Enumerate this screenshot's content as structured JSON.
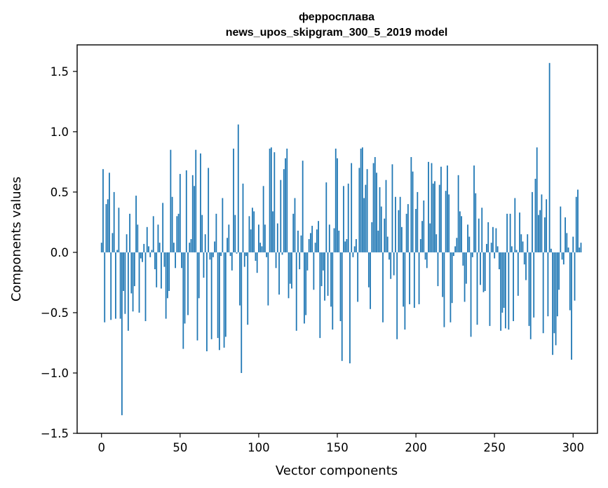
{
  "chart_data": {
    "type": "bar",
    "title_line1": "ферросплава",
    "title_line2": "news_upos_skipgram_300_5_2019 model",
    "xlabel": "Vector components",
    "ylabel": "Components values",
    "xlim": [
      -15.5,
      315.5
    ],
    "ylim": [
      -1.5,
      1.72
    ],
    "xticks": [
      0,
      50,
      100,
      150,
      200,
      250,
      300
    ],
    "xtick_labels": [
      "0",
      "50",
      "100",
      "150",
      "200",
      "250",
      "300"
    ],
    "yticks": [
      -1.5,
      -1.0,
      -0.5,
      0.0,
      0.5,
      1.0,
      1.5
    ],
    "ytick_labels": [
      "−1.5",
      "−1.0",
      "−0.5",
      "0.0",
      "0.5",
      "1.0",
      "1.5"
    ],
    "bar_color": "#1f77b4",
    "grid": false,
    "legend": "none",
    "values": [
      0.08,
      0.69,
      -0.58,
      0.4,
      0.44,
      0.66,
      -0.56,
      0.16,
      0.5,
      -0.55,
      0.02,
      0.37,
      -0.55,
      -1.35,
      -0.32,
      -0.51,
      0.15,
      -0.65,
      0.32,
      -0.34,
      -0.49,
      -0.28,
      0.47,
      0.23,
      -0.5,
      -0.05,
      -0.08,
      0.07,
      -0.57,
      0.21,
      0.05,
      -0.04,
      0.02,
      0.3,
      -0.14,
      -0.29,
      0.23,
      0.08,
      -0.3,
      0.41,
      -0.12,
      -0.55,
      -0.38,
      -0.32,
      0.85,
      0.46,
      0.08,
      -0.13,
      0.3,
      0.32,
      0.65,
      -0.13,
      -0.8,
      -0.59,
      0.68,
      -0.52,
      0.08,
      0.11,
      0.64,
      0.55,
      0.85,
      -0.73,
      -0.38,
      0.82,
      0.31,
      -0.21,
      0.15,
      -0.82,
      0.7,
      -0.06,
      -0.72,
      -0.04,
      0.09,
      0.32,
      -0.71,
      -0.81,
      -0.03,
      0.45,
      -0.79,
      -0.7,
      0.12,
      0.23,
      -0.03,
      -0.15,
      0.86,
      0.31,
      -0.01,
      1.06,
      -0.44,
      -1.0,
      0.57,
      -0.12,
      -0.03,
      -0.6,
      0.3,
      0.19,
      0.37,
      0.34,
      -0.07,
      -0.17,
      0.23,
      0.08,
      0.05,
      0.55,
      0.23,
      -0.04,
      -0.44,
      0.86,
      0.87,
      0.34,
      0.83,
      -0.13,
      0.24,
      -0.35,
      0.6,
      -0.02,
      0.69,
      0.78,
      0.86,
      -0.38,
      -0.26,
      -0.3,
      0.32,
      0.45,
      -0.65,
      0.18,
      -0.14,
      0.14,
      0.76,
      -0.59,
      -0.52,
      -0.15,
      0.11,
      0.16,
      0.22,
      -0.31,
      0.08,
      0.19,
      0.26,
      -0.71,
      -0.28,
      -0.15,
      -0.4,
      0.58,
      -0.36,
      0.23,
      -0.45,
      -0.64,
      0.2,
      0.86,
      0.78,
      0.18,
      -0.57,
      -0.9,
      0.55,
      0.09,
      0.11,
      0.57,
      -0.92,
      0.74,
      -0.04,
      0.05,
      0.11,
      -0.41,
      0.7,
      0.86,
      0.87,
      0.45,
      0.56,
      0.69,
      -0.29,
      -0.47,
      0.25,
      0.74,
      0.79,
      0.66,
      0.18,
      0.54,
      0.38,
      -0.58,
      0.28,
      0.6,
      0.13,
      -0.06,
      -0.22,
      0.73,
      -0.19,
      0.46,
      -0.72,
      0.35,
      0.46,
      0.21,
      -0.45,
      -0.64,
      0.32,
      0.4,
      -0.43,
      0.79,
      0.67,
      -0.46,
      0.36,
      0.5,
      -0.43,
      0.11,
      0.26,
      0.43,
      -0.06,
      -0.13,
      0.75,
      0.24,
      0.74,
      0.57,
      0.59,
      0.15,
      -0.28,
      0.56,
      0.71,
      -0.37,
      -0.62,
      0.51,
      0.72,
      0.48,
      -0.58,
      -0.42,
      -0.03,
      0.05,
      0.12,
      0.64,
      0.34,
      0.3,
      -0.11,
      -0.41,
      -0.26,
      0.23,
      0.13,
      -0.7,
      -0.04,
      0.72,
      0.49,
      -0.6,
      0.28,
      -0.27,
      0.37,
      -0.33,
      -0.32,
      0.07,
      0.25,
      -0.61,
      0.08,
      0.21,
      -0.05,
      0.2,
      0.05,
      -0.14,
      -0.65,
      -0.5,
      -0.46,
      -0.63,
      0.32,
      -0.64,
      0.32,
      0.05,
      -0.57,
      0.45,
      0.02,
      -0.36,
      0.33,
      0.15,
      0.09,
      -0.1,
      -0.23,
      0.15,
      -0.61,
      -0.72,
      0.5,
      -0.54,
      0.61,
      0.87,
      0.31,
      0.35,
      0.48,
      -0.67,
      0.29,
      0.44,
      -0.53,
      1.57,
      0.03,
      -0.85,
      -0.67,
      -0.77,
      -0.53,
      -0.31,
      0.38,
      -0.06,
      -0.1,
      0.29,
      0.16,
      0.04,
      -0.48,
      -0.89,
      0.13,
      -0.4,
      0.46,
      0.52,
      0.04,
      0.08
    ]
  }
}
